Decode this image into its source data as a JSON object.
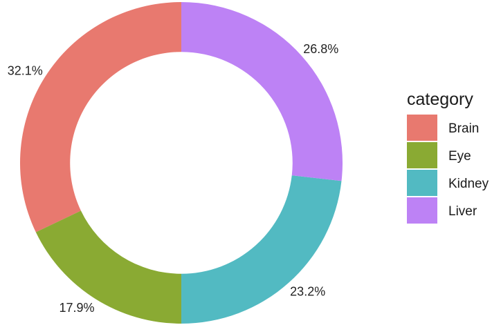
{
  "chart_data": {
    "type": "pie",
    "variant": "donut",
    "legend_title": "category",
    "legend_placement": "right",
    "categories": [
      "Brain",
      "Eye",
      "Kidney",
      "Liver"
    ],
    "values": [
      32.1,
      17.9,
      23.2,
      26.8
    ],
    "labels": [
      "32.1%",
      "17.9%",
      "23.2%",
      "26.8%"
    ],
    "colors": [
      "#E8796F",
      "#8AAA33",
      "#52BAC2",
      "#BD82F5"
    ],
    "start_angle_deg": 0,
    "direction": "counterclockwise",
    "inner_radius_ratio": 0.69
  }
}
